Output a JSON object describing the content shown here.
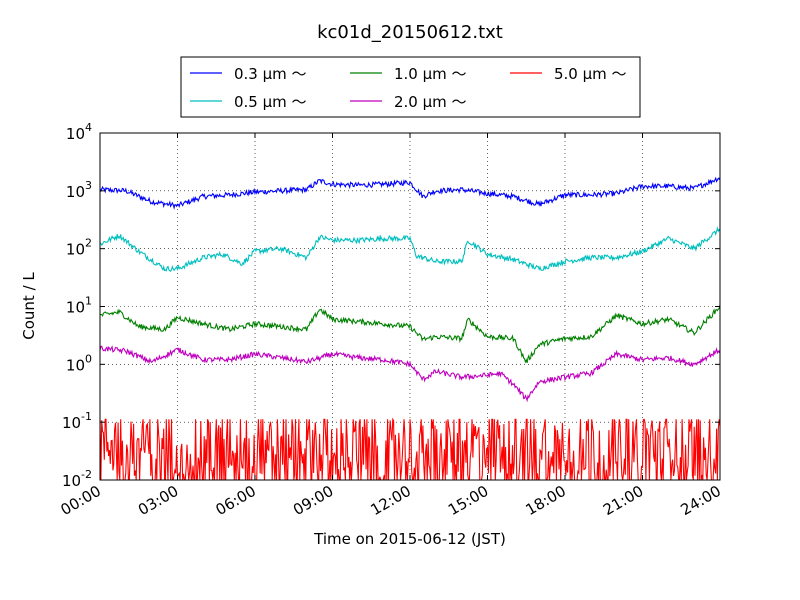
{
  "chart_data": {
    "type": "line",
    "title": "kc01d_20150612.txt",
    "xlabel": "Time on 2015-06-12 (JST)",
    "ylabel": "Count / L",
    "yscale": "log",
    "ylim": [
      0.01,
      10000
    ],
    "y_ticks": [
      {
        "base": "10",
        "exp": "-2",
        "value": 0.01
      },
      {
        "base": "10",
        "exp": "-1",
        "value": 0.1
      },
      {
        "base": "10",
        "exp": "0",
        "value": 1
      },
      {
        "base": "10",
        "exp": "1",
        "value": 10
      },
      {
        "base": "10",
        "exp": "2",
        "value": 100
      },
      {
        "base": "10",
        "exp": "3",
        "value": 1000
      },
      {
        "base": "10",
        "exp": "4",
        "value": 10000
      }
    ],
    "xlim": [
      "00:00",
      "24:00"
    ],
    "x_ticks": [
      "00:00",
      "03:00",
      "06:00",
      "09:00",
      "12:00",
      "15:00",
      "18:00",
      "21:00",
      "24:00"
    ],
    "grid": true,
    "legend_position": "top-center (above plot)",
    "series": [
      {
        "name": "0.3 μm ～",
        "color": "#0000ff",
        "x": [
          "00:00",
          "01:00",
          "02:00",
          "03:00",
          "04:00",
          "05:00",
          "06:00",
          "07:00",
          "08:00",
          "08:30",
          "09:00",
          "10:00",
          "11:00",
          "12:00",
          "12:30",
          "13:00",
          "14:00",
          "15:00",
          "16:00",
          "17:00",
          "18:00",
          "19:00",
          "20:00",
          "21:00",
          "22:00",
          "23:00",
          "24:00"
        ],
        "y": [
          1050,
          1000,
          650,
          550,
          800,
          850,
          950,
          1000,
          1050,
          1500,
          1300,
          1250,
          1300,
          1400,
          800,
          1000,
          1050,
          900,
          800,
          580,
          850,
          850,
          900,
          1200,
          1200,
          1100,
          1700
        ]
      },
      {
        "name": "0.5 μm ～",
        "color": "#00bfbf",
        "x": [
          "00:00",
          "00:45",
          "01:30",
          "02:30",
          "03:00",
          "04:00",
          "04:45",
          "05:30",
          "06:00",
          "07:00",
          "08:00",
          "08:30",
          "09:00",
          "10:00",
          "11:00",
          "12:00",
          "12:15",
          "13:00",
          "14:00",
          "14:15",
          "15:00",
          "16:00",
          "17:00",
          "18:00",
          "19:00",
          "20:00",
          "21:00",
          "22:00",
          "23:00",
          "24:00"
        ],
        "y": [
          120,
          170,
          90,
          45,
          45,
          70,
          80,
          55,
          90,
          100,
          70,
          160,
          140,
          140,
          150,
          150,
          75,
          60,
          60,
          140,
          80,
          65,
          45,
          60,
          70,
          70,
          90,
          150,
          100,
          220
        ]
      },
      {
        "name": "1.0 μm ～",
        "color": "#008000",
        "x": [
          "00:00",
          "00:45",
          "01:30",
          "02:30",
          "03:00",
          "04:00",
          "05:00",
          "06:00",
          "07:00",
          "08:00",
          "08:30",
          "09:00",
          "10:00",
          "11:00",
          "12:00",
          "12:30",
          "13:00",
          "14:00",
          "14:15",
          "15:00",
          "16:00",
          "16:30",
          "17:00",
          "18:00",
          "19:00",
          "20:00",
          "21:00",
          "22:00",
          "23:00",
          "24:00"
        ],
        "y": [
          7,
          8,
          4.5,
          4,
          6.5,
          5,
          4,
          5,
          4.5,
          4,
          9,
          6,
          5.5,
          5,
          4.5,
          2.7,
          3,
          2.8,
          6,
          3,
          2.8,
          1.1,
          2.2,
          2.8,
          3,
          7,
          5,
          6,
          3.5,
          10
        ]
      },
      {
        "name": "2.0 μm ～",
        "color": "#bf00bf",
        "x": [
          "00:00",
          "01:00",
          "02:00",
          "03:00",
          "04:00",
          "05:00",
          "06:00",
          "07:00",
          "08:00",
          "09:00",
          "10:00",
          "11:00",
          "12:00",
          "12:30",
          "13:00",
          "14:00",
          "15:00",
          "15:30",
          "16:00",
          "16:30",
          "17:00",
          "18:00",
          "19:00",
          "20:00",
          "21:00",
          "22:00",
          "23:00",
          "24:00"
        ],
        "y": [
          1.9,
          1.7,
          1.1,
          1.8,
          1.2,
          1.2,
          1.5,
          1.3,
          1.1,
          1.5,
          1.3,
          1.2,
          1.0,
          0.55,
          0.75,
          0.6,
          0.65,
          0.7,
          0.45,
          0.25,
          0.5,
          0.6,
          0.7,
          1.5,
          1.2,
          1.3,
          1.0,
          1.8
        ]
      },
      {
        "name": "5.0 μm ～",
        "color": "#ff0000",
        "x": [
          "00:00",
          "24:00"
        ],
        "y_range_noisy": [
          0.01,
          0.1
        ],
        "y_typical": 0.03
      }
    ]
  }
}
